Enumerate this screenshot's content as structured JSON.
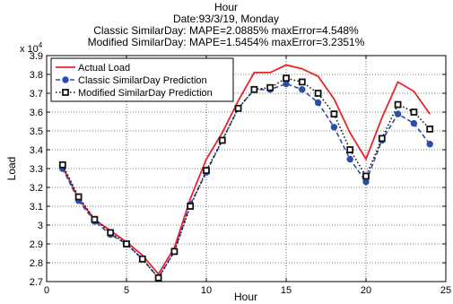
{
  "chart_data": {
    "type": "line",
    "title_lines": [
      "Hour",
      "Date:93/3/19, Monday",
      "Classic SimilarDay: MAPE=2.0885% maxError=4.548%",
      "Modified SimilarDay: MAPE=1.5454% maxError=3.2351%"
    ],
    "xlabel": "Hour",
    "ylabel": "Load",
    "y_exponent_label": "x 10",
    "y_exponent_power": "4",
    "xlim": [
      0,
      25
    ],
    "ylim": [
      2.7,
      3.9
    ],
    "x_ticks": [
      0,
      5,
      10,
      15,
      20,
      25
    ],
    "x_tick_labels": [
      "0",
      "5",
      "10",
      "15",
      "20",
      "25"
    ],
    "y_ticks": [
      2.7,
      2.8,
      2.9,
      3.0,
      3.1,
      3.2,
      3.3,
      3.4,
      3.5,
      3.6,
      3.7,
      3.8,
      3.9
    ],
    "y_tick_labels": [
      "2.7",
      "2.8",
      "2.9",
      "3",
      "3.1",
      "3.2",
      "3.3",
      "3.4",
      "3.5",
      "3.6",
      "3.7",
      "3.8",
      "3.9"
    ],
    "grid": true,
    "legend_position": "top-left",
    "x": [
      1,
      2,
      3,
      4,
      5,
      6,
      7,
      8,
      9,
      10,
      11,
      12,
      13,
      14,
      15,
      16,
      17,
      18,
      19,
      20,
      21,
      22,
      23,
      24
    ],
    "series": [
      {
        "name": "Actual Load",
        "color": "#e8232b",
        "style": "solid",
        "marker": "none",
        "values": [
          3.31,
          3.14,
          3.03,
          2.97,
          2.91,
          2.84,
          2.74,
          2.88,
          3.14,
          3.35,
          3.49,
          3.66,
          3.81,
          3.81,
          3.85,
          3.83,
          3.79,
          3.67,
          3.49,
          3.35,
          3.57,
          3.76,
          3.71,
          3.59
        ]
      },
      {
        "name": "Classic SimilarDay Prediction",
        "color": "#2b4ea8",
        "style": "dashed",
        "marker": "circle",
        "values": [
          3.3,
          3.13,
          3.02,
          2.95,
          2.9,
          2.82,
          2.72,
          2.86,
          3.11,
          3.28,
          3.45,
          3.62,
          3.72,
          3.72,
          3.75,
          3.72,
          3.65,
          3.52,
          3.35,
          3.23,
          3.45,
          3.59,
          3.54,
          3.43
        ]
      },
      {
        "name": "Modified SimilarDay Prediction",
        "color": "#111111",
        "style": "dotted",
        "marker": "square",
        "values": [
          3.32,
          3.15,
          3.03,
          2.96,
          2.9,
          2.82,
          2.72,
          2.86,
          3.1,
          3.29,
          3.45,
          3.62,
          3.72,
          3.73,
          3.78,
          3.76,
          3.7,
          3.59,
          3.4,
          3.26,
          3.46,
          3.64,
          3.6,
          3.51
        ]
      }
    ]
  }
}
